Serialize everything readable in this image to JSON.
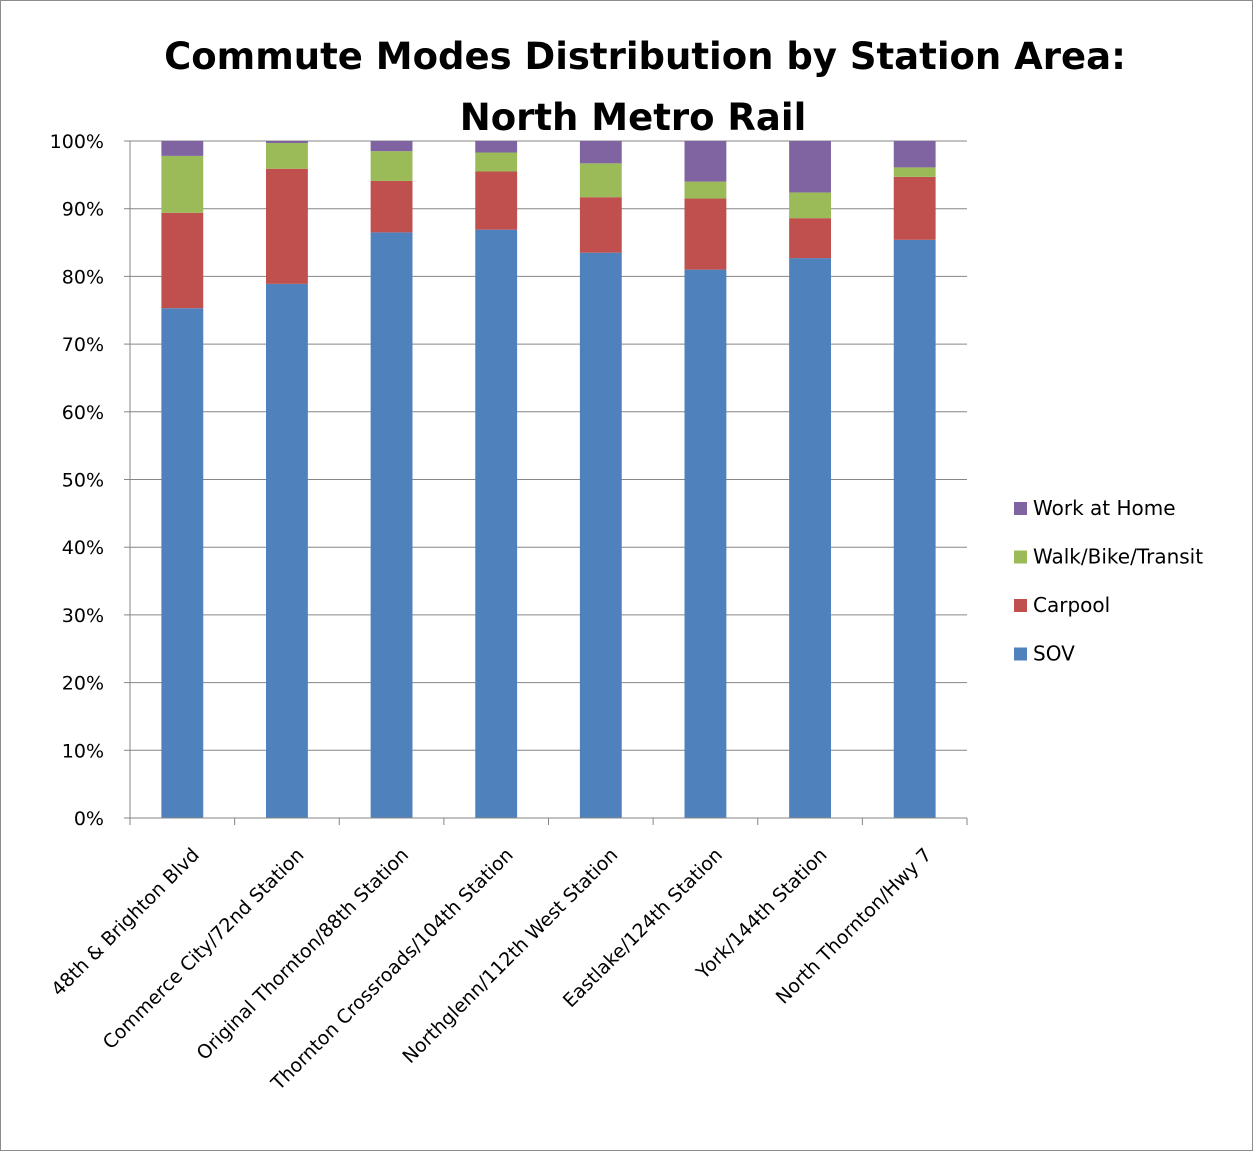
{
  "chart_data": {
    "type": "bar",
    "stacked": true,
    "title": "Commute Modes Distribution by Station Area: North Metro Rail",
    "title_lines": [
      "Commute Modes Distribution by Station Area:",
      "North Metro Rail"
    ],
    "xlabel": "",
    "ylabel": "",
    "ylim": [
      0,
      100
    ],
    "y_ticks": [
      "0%",
      "10%",
      "20%",
      "30%",
      "40%",
      "50%",
      "60%",
      "70%",
      "80%",
      "90%",
      "100%"
    ],
    "grid": true,
    "legend_position": "right",
    "categories": [
      "48th & Brighton Blvd",
      "Commerce City/72nd Station",
      "Original Thornton/88th Station",
      "Thornton Crossroads/104th Station",
      "Northglenn/112th West Station",
      "Eastlake/124th Station",
      "York/144th Station",
      "North Thornton/Hwy 7"
    ],
    "series": [
      {
        "name": "SOV",
        "color": "#4f81bd",
        "values": [
          75.3,
          78.9,
          86.5,
          86.9,
          83.5,
          81.0,
          82.7,
          85.4
        ]
      },
      {
        "name": "Carpool",
        "color": "#c0504d",
        "values": [
          14.1,
          17.0,
          7.6,
          8.6,
          8.2,
          10.5,
          5.9,
          9.3
        ]
      },
      {
        "name": "Walk/Bike/Transit",
        "color": "#9bbb59",
        "values": [
          8.4,
          3.8,
          4.4,
          2.8,
          5.0,
          2.5,
          3.8,
          1.4
        ]
      },
      {
        "name": "Work at Home",
        "color": "#8064a2",
        "values": [
          2.2,
          0.3,
          1.5,
          1.7,
          3.3,
          6.0,
          7.6,
          3.9
        ]
      }
    ],
    "legend_order": [
      "Work at Home",
      "Walk/Bike/Transit",
      "Carpool",
      "SOV"
    ]
  }
}
